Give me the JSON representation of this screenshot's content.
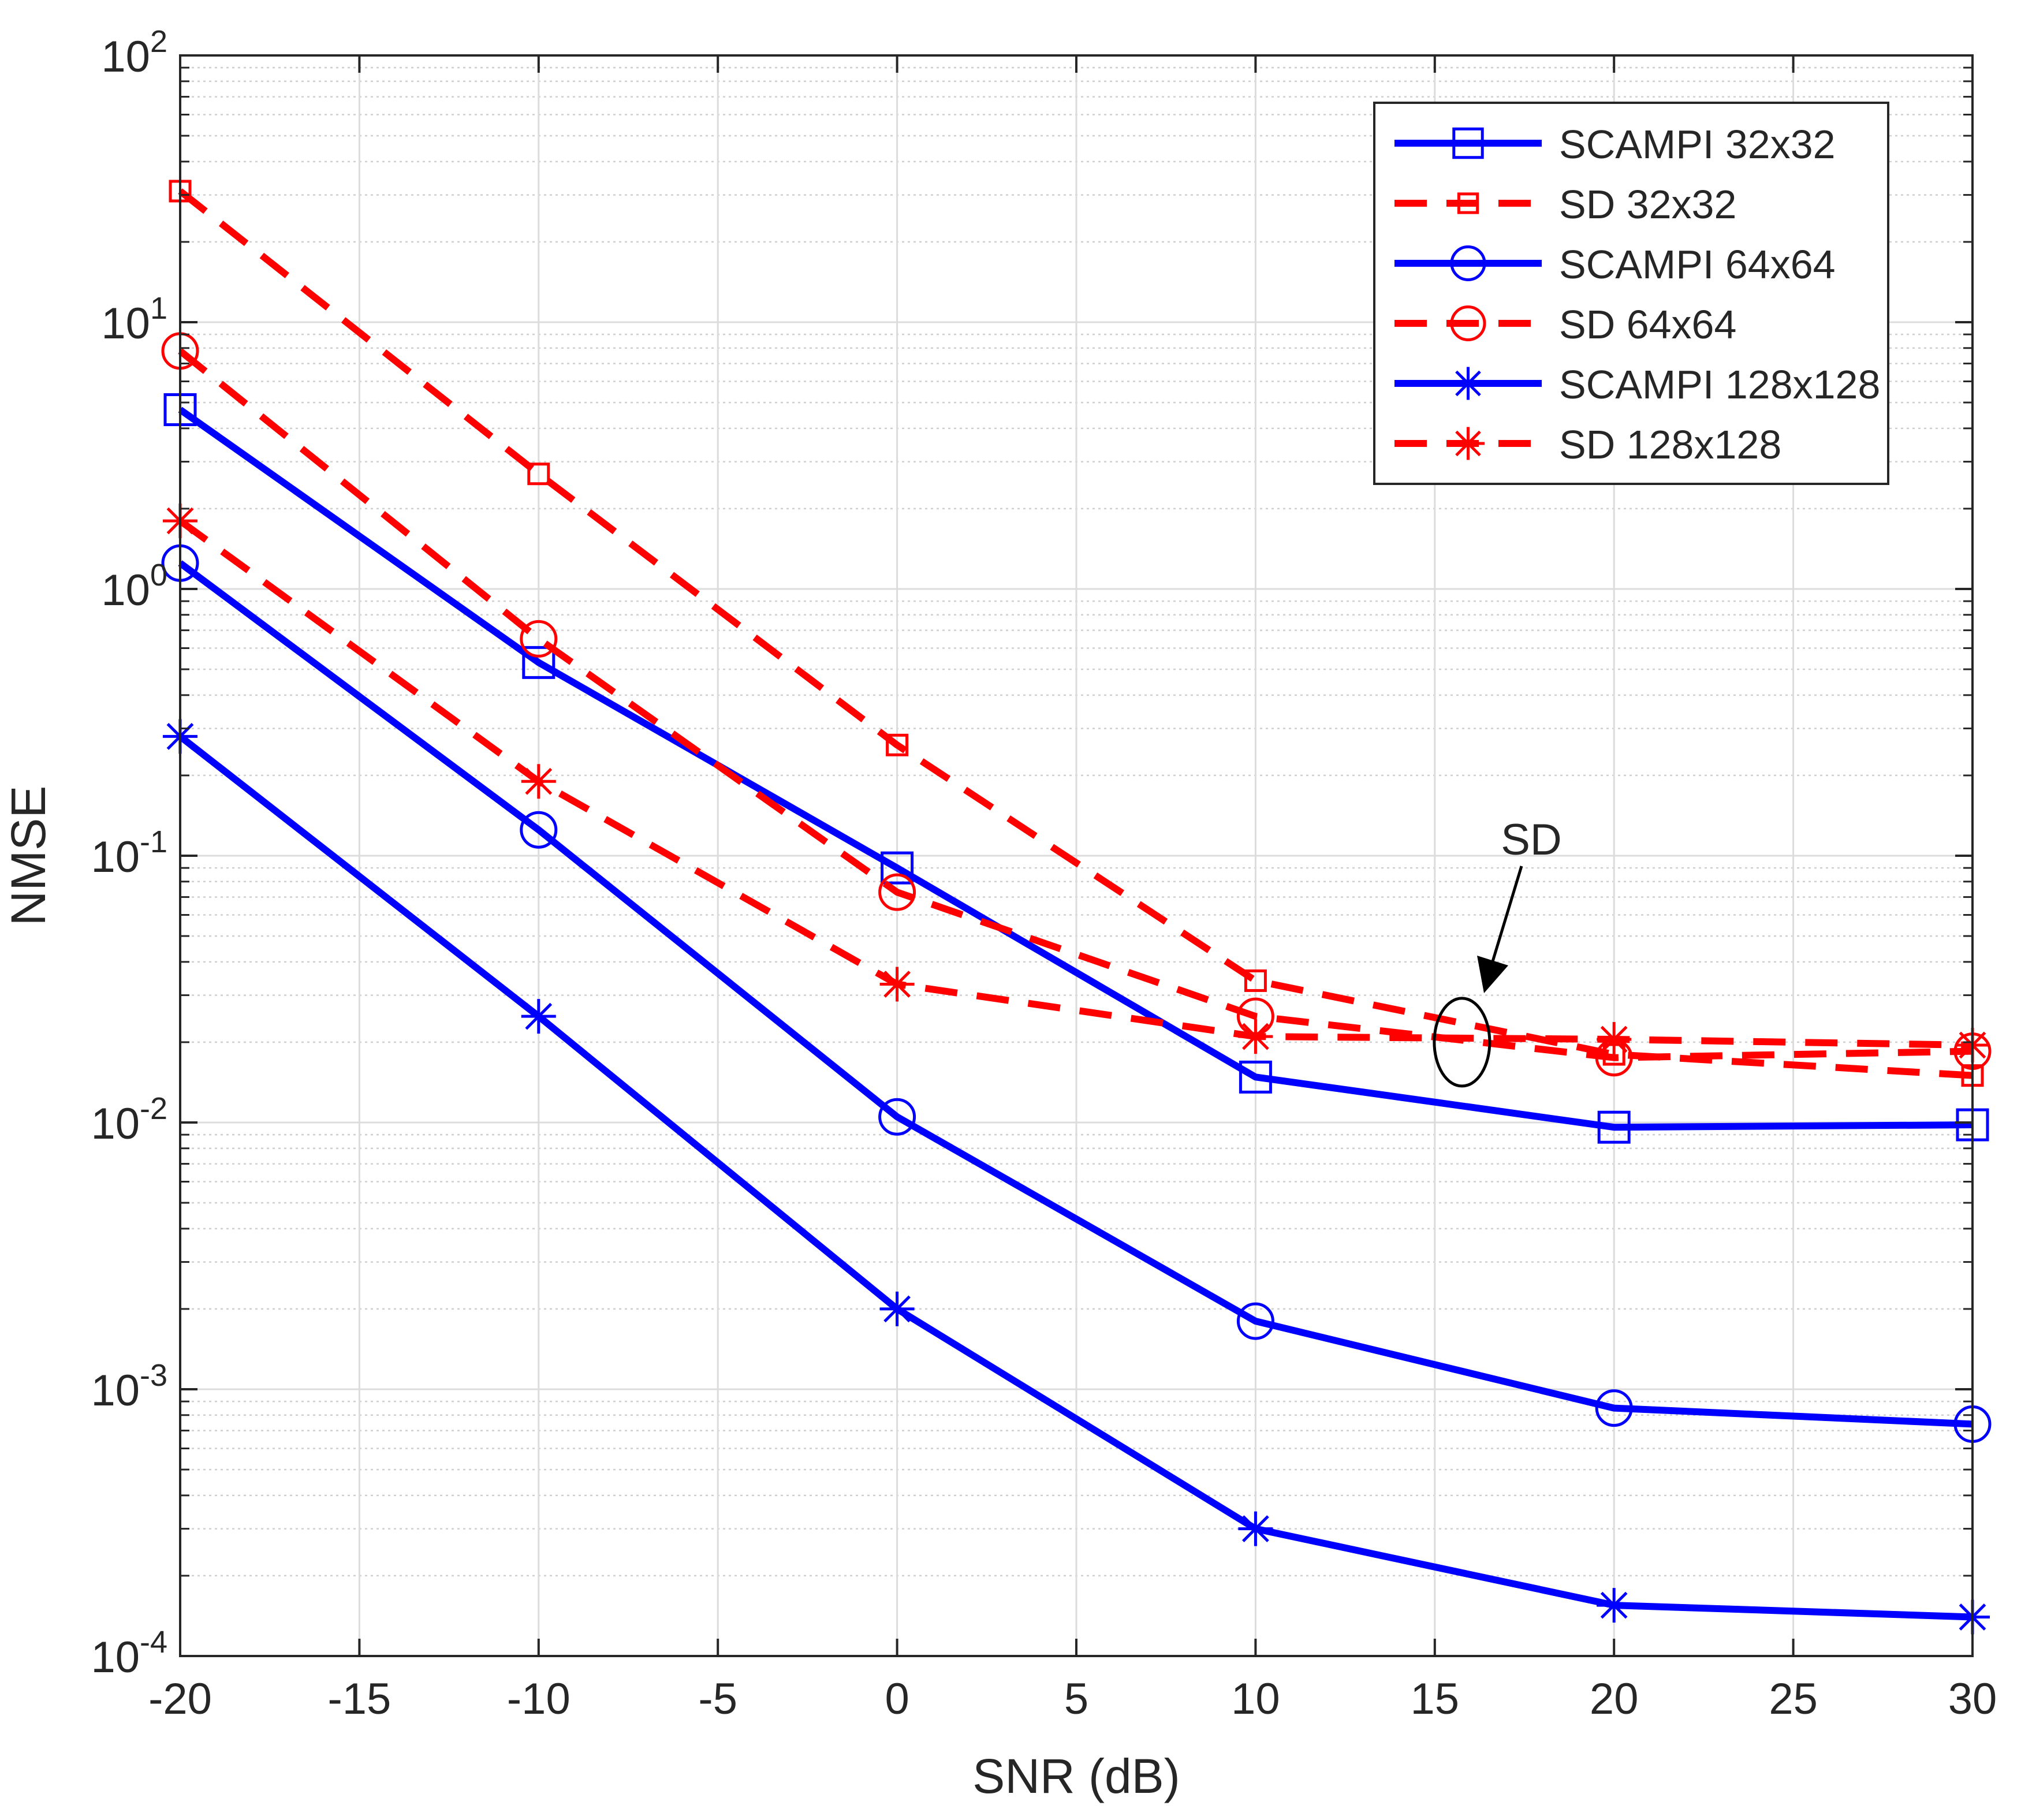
{
  "chart_data": {
    "type": "line",
    "title": "",
    "xlabel": "SNR (dB)",
    "ylabel": "NMSE",
    "yscale": "log",
    "xlim": [
      -20,
      30
    ],
    "ylim": [
      0.0001,
      100
    ],
    "x_ticks": [
      -20,
      -15,
      -10,
      -5,
      0,
      5,
      10,
      15,
      20,
      25,
      30
    ],
    "x_tick_labels": [
      "-20",
      "-15",
      "-10",
      "-5",
      "0",
      "5",
      "10",
      "15",
      "20",
      "25",
      "30"
    ],
    "y_ticks": [
      {
        "value": 100,
        "base": "10",
        "exp": "2"
      },
      {
        "value": 10,
        "base": "10",
        "exp": "1"
      },
      {
        "value": 1,
        "base": "10",
        "exp": "0"
      },
      {
        "value": 0.1,
        "base": "10",
        "exp": "-1"
      },
      {
        "value": 0.01,
        "base": "10",
        "exp": "-2"
      },
      {
        "value": 0.001,
        "base": "10",
        "exp": "-3"
      },
      {
        "value": 0.0001,
        "base": "10",
        "exp": "-4"
      }
    ],
    "grid": true,
    "legend_position": "top-right",
    "x": [
      -20,
      -10,
      0,
      10,
      20,
      30
    ],
    "series": [
      {
        "name": "SCAMPI 32x32",
        "color": "#0000ff",
        "dash": "solid",
        "marker": "square",
        "values": [
          4.7,
          0.53,
          0.09,
          0.0148,
          0.0096,
          0.0098
        ]
      },
      {
        "name": "SD 32x32",
        "color": "#ff0000",
        "dash": "dashed",
        "marker": "small-square",
        "values": [
          31,
          2.7,
          0.26,
          0.034,
          0.018,
          0.015
        ]
      },
      {
        "name": "SCAMPI 64x64",
        "color": "#0000ff",
        "dash": "solid",
        "marker": "circle",
        "values": [
          1.25,
          0.125,
          0.0105,
          0.0018,
          0.00085,
          0.00074
        ]
      },
      {
        "name": "SD 64x64",
        "color": "#ff0000",
        "dash": "dashed",
        "marker": "circle",
        "values": [
          7.8,
          0.65,
          0.073,
          0.025,
          0.0175,
          0.0185
        ]
      },
      {
        "name": "SCAMPI 128x128",
        "color": "#0000ff",
        "dash": "solid",
        "marker": "asterisk",
        "values": [
          0.28,
          0.025,
          0.002,
          0.0003,
          0.000155,
          0.00014
        ]
      },
      {
        "name": "SD 128x128",
        "color": "#ff0000",
        "dash": "dashed",
        "marker": "asterisk",
        "values": [
          1.8,
          0.19,
          0.033,
          0.021,
          0.0205,
          0.0195
        ]
      }
    ],
    "annotations": [
      {
        "text": "SD",
        "points_to": {
          "x": 16,
          "y": 0.02
        },
        "shape": "ellipse-around-sd-curves"
      }
    ]
  },
  "colors": {
    "scampi": "#0000ff",
    "sd": "#ff0000",
    "axis": "#262626",
    "grid": "#dcdcdc"
  }
}
